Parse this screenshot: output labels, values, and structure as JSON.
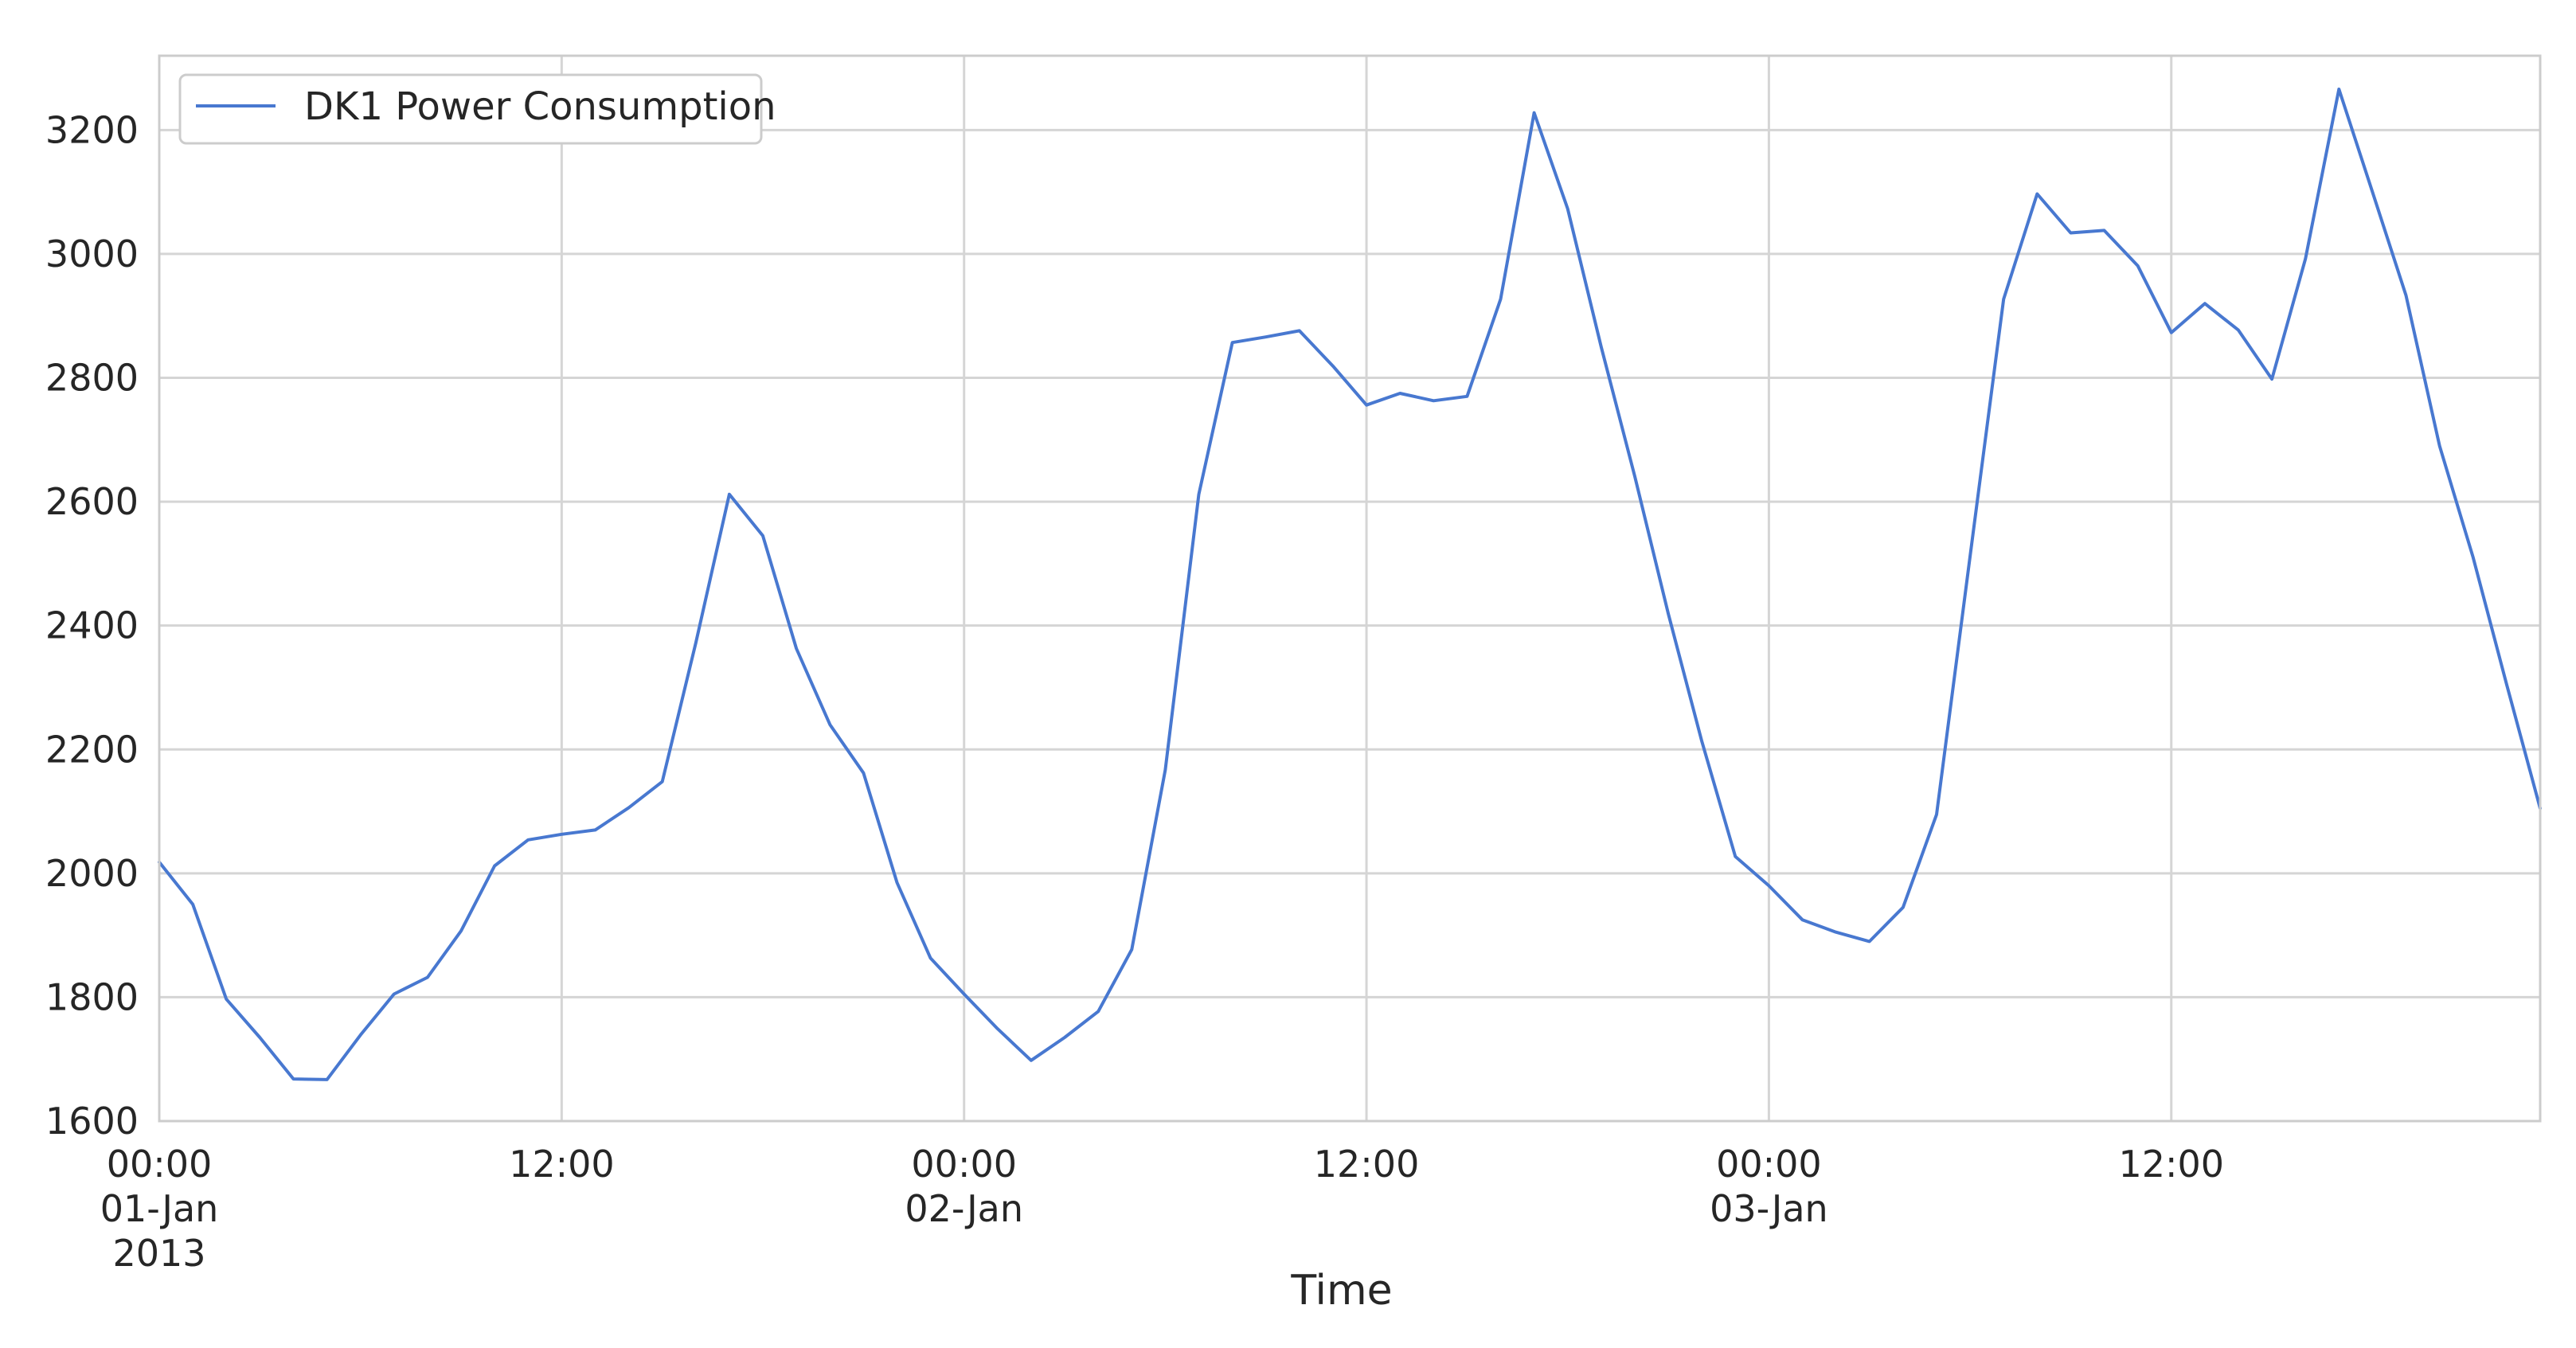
{
  "chart_data": {
    "type": "line",
    "title": "",
    "xlabel": "Time",
    "ylabel": "",
    "grid": true,
    "legend_position": "top-left",
    "x_start": "2013-01-01 00:00",
    "x_end": "2013-01-03 23:00",
    "x_interval": "1 hour",
    "xlim": [
      "2013-01-01 00:00",
      "2013-01-03 23:00"
    ],
    "ylim": [
      1600,
      3320
    ],
    "y_ticks": [
      1600,
      1800,
      2000,
      2200,
      2400,
      2600,
      2800,
      3000,
      3200
    ],
    "y_tick_labels": [
      "1600",
      "1800",
      "2000",
      "2200",
      "2400",
      "2600",
      "2800",
      "3000",
      "3200"
    ],
    "x_ticks": [
      {
        "x": "2013-01-01 00:00",
        "lines": [
          "00:00",
          "01-Jan",
          "2013"
        ]
      },
      {
        "x": "2013-01-01 12:00",
        "lines": [
          "12:00"
        ]
      },
      {
        "x": "2013-01-02 00:00",
        "lines": [
          "00:00",
          "02-Jan"
        ]
      },
      {
        "x": "2013-01-02 12:00",
        "lines": [
          "12:00"
        ]
      },
      {
        "x": "2013-01-03 00:00",
        "lines": [
          "00:00",
          "03-Jan"
        ]
      },
      {
        "x": "2013-01-03 12:00",
        "lines": [
          "12:00"
        ]
      }
    ],
    "series": [
      {
        "name": "DK1 Power Consumption",
        "color": "#4878d0",
        "values": [
          2018,
          1950,
          1797,
          1735,
          1668,
          1667,
          1739,
          1805,
          1832,
          1907,
          2012,
          2054,
          2063,
          2070,
          2106,
          2148,
          2372,
          2612,
          2545,
          2363,
          2240,
          2162,
          1985,
          1863,
          1805,
          1749,
          1698,
          1735,
          1777,
          1877,
          2167,
          2612,
          2857,
          2866,
          2876,
          2819,
          2756,
          2775,
          2763,
          2770,
          2927,
          3228,
          3073,
          2850,
          2641,
          2419,
          2213,
          2027,
          1980,
          1925,
          1905,
          1890,
          1945,
          2095,
          2512,
          2927,
          3097,
          3034,
          3038,
          2981,
          2873,
          2920,
          2877,
          2798,
          2992,
          3266,
          3100,
          2933,
          2690,
          2510,
          2305,
          2105
        ]
      }
    ]
  }
}
